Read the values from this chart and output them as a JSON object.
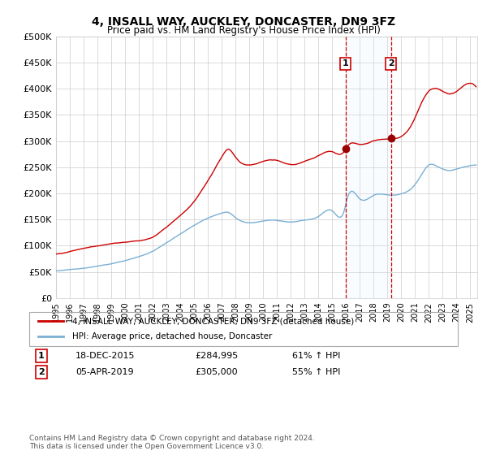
{
  "title": "4, INSALL WAY, AUCKLEY, DONCASTER, DN9 3FZ",
  "subtitle": "Price paid vs. HM Land Registry's House Price Index (HPI)",
  "legend_label_red": "4, INSALL WAY, AUCKLEY, DONCASTER, DN9 3FZ (detached house)",
  "legend_label_blue": "HPI: Average price, detached house, Doncaster",
  "sale1_label": "1",
  "sale1_date": "18-DEC-2015",
  "sale1_price": "£284,995",
  "sale1_hpi": "61% ↑ HPI",
  "sale2_label": "2",
  "sale2_date": "05-APR-2019",
  "sale2_price": "£305,000",
  "sale2_hpi": "55% ↑ HPI",
  "sale1_year": 2015.96,
  "sale2_year": 2019.26,
  "ylim": [
    0,
    500000
  ],
  "xlim_start": 1995.0,
  "xlim_end": 2025.5,
  "yticks": [
    0,
    50000,
    100000,
    150000,
    200000,
    250000,
    300000,
    350000,
    400000,
    450000,
    500000
  ],
  "ytick_labels": [
    "£0",
    "£50K",
    "£100K",
    "£150K",
    "£200K",
    "£250K",
    "£300K",
    "£350K",
    "£400K",
    "£450K",
    "£500K"
  ],
  "xtick_years": [
    1995,
    1996,
    1997,
    1998,
    1999,
    2000,
    2001,
    2002,
    2003,
    2004,
    2005,
    2006,
    2007,
    2008,
    2009,
    2010,
    2011,
    2012,
    2013,
    2014,
    2015,
    2016,
    2017,
    2018,
    2019,
    2020,
    2021,
    2022,
    2023,
    2024,
    2025
  ],
  "red_color": "#cc0000",
  "blue_color": "#7aafd4",
  "sale_dot_color": "#990000",
  "sale_vline_color": "#cc0000",
  "shade_color": "#ddeeff",
  "footnote": "Contains HM Land Registry data © Crown copyright and database right 2024.\nThis data is licensed under the Open Government Licence v3.0.",
  "sale1_price_val": 284995,
  "sale2_price_val": 305000
}
